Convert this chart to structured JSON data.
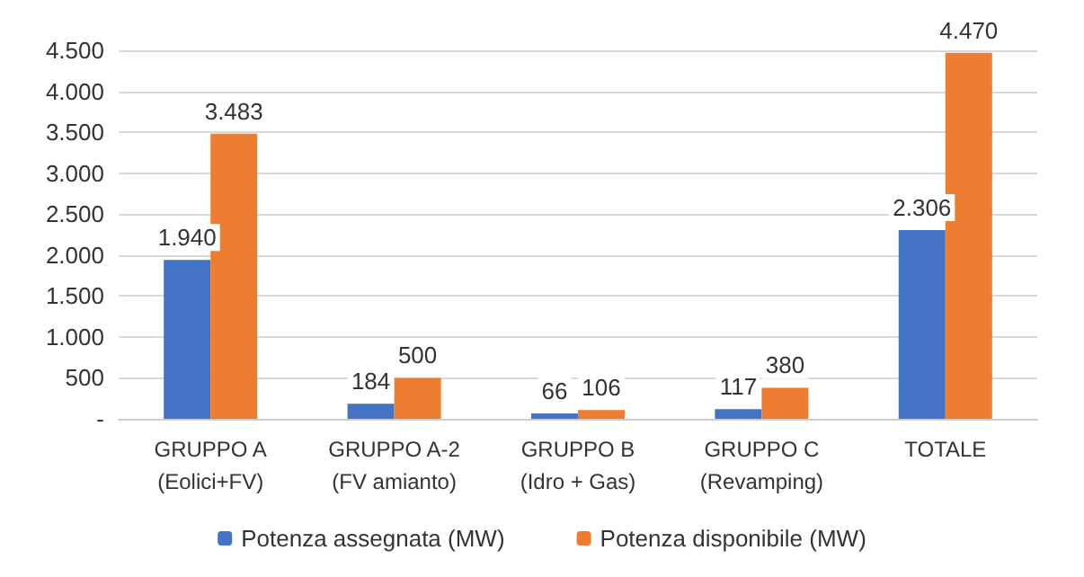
{
  "chart_data": {
    "type": "bar",
    "categories": [
      "GRUPPO A\n(Eolici+FV)",
      "GRUPPO A-2\n(FV amianto)",
      "GRUPPO B\n(Idro + Gas)",
      "GRUPPO C\n(Revamping)",
      "TOTALE"
    ],
    "series": [
      {
        "name": "Potenza assegnata (MW)",
        "color": "#4472c4",
        "values": [
          1940,
          184,
          66,
          117,
          2306
        ],
        "value_labels": [
          "1.940",
          "184",
          "66",
          "117",
          "2.306"
        ]
      },
      {
        "name": "Potenza disponibile (MW)",
        "color": "#ed7d31",
        "values": [
          3483,
          500,
          106,
          380,
          4470
        ],
        "value_labels": [
          "3.483",
          "500",
          "106",
          "380",
          "4.470"
        ]
      }
    ],
    "ylim": [
      0,
      4500
    ],
    "yticks": [
      {
        "value": 0,
        "label": "-"
      },
      500,
      {
        "value": 1000,
        "label": "1.000"
      },
      {
        "value": 1500,
        "label": "1.500"
      },
      {
        "value": 2000,
        "label": "2.000"
      },
      {
        "value": 2500,
        "label": "2.500"
      },
      {
        "value": 3000,
        "label": "3.000"
      },
      {
        "value": 3500,
        "label": "3.500"
      },
      {
        "value": 4000,
        "label": "4.000"
      },
      {
        "value": 4500,
        "label": "4.500"
      }
    ],
    "grid": "y",
    "legend": "bottom"
  }
}
